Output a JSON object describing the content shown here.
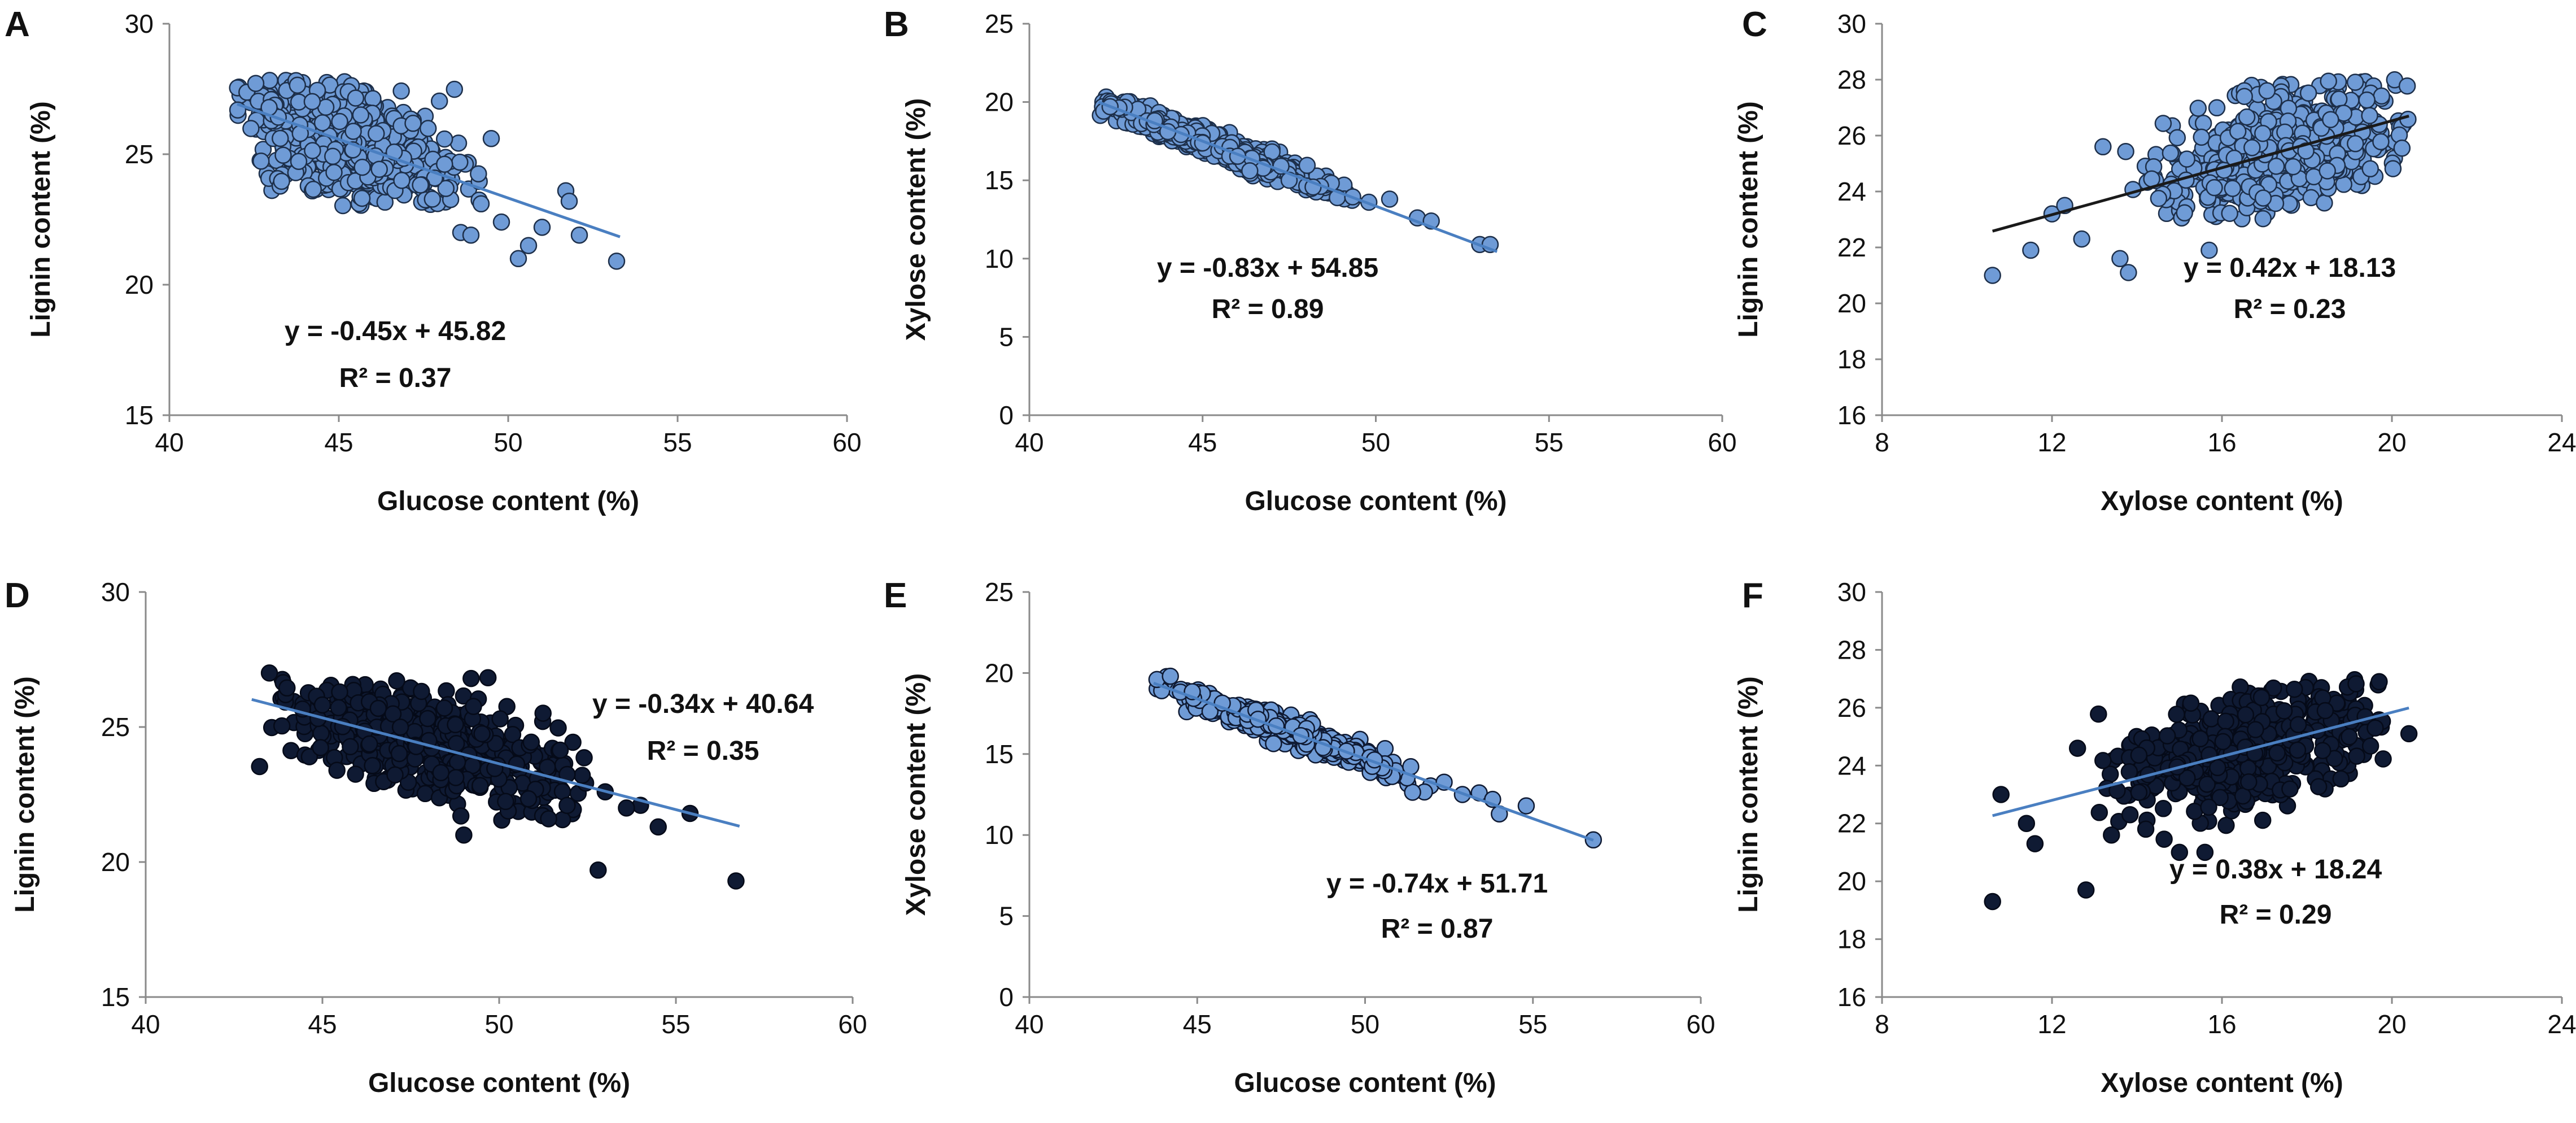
{
  "figure_title": "",
  "chart_data": [
    {
      "panel": "A",
      "type": "scatter",
      "xlabel": "Glucose content (%)",
      "ylabel": "Lignin content (%)",
      "xlim": [
        40,
        60
      ],
      "ylim": [
        15,
        30
      ],
      "xticks": [
        "40",
        "45",
        "50",
        "55",
        "60"
      ],
      "yticks": [
        "15",
        "20",
        "25",
        "30"
      ],
      "trend": {
        "slope": -0.45,
        "intercept": 45.82,
        "x_range": [
          42,
          53.3
        ],
        "color": "#4a7fc1"
      },
      "equation": "y = -0.45x + 45.82",
      "r2": "R² = 0.37",
      "point_fill": "#6f9bd6",
      "point_stroke": "#1d2f4a",
      "cloud": {
        "n": 700,
        "x_mean": 45.2,
        "x_sd": 1.55,
        "x_min": 42.0,
        "x_max": 49.5,
        "resid_sd": 1.0,
        "y_min": 23.0,
        "y_max": 28.0,
        "seed": 11
      },
      "points": [
        [
          49.5,
          25.6
        ],
        [
          51.7,
          23.6
        ],
        [
          51.8,
          23.2
        ],
        [
          53.2,
          20.9
        ],
        [
          50.3,
          21.0
        ],
        [
          49.8,
          22.4
        ],
        [
          48.6,
          22.0
        ],
        [
          48.9,
          21.9
        ],
        [
          51.0,
          22.2
        ],
        [
          52.1,
          21.9
        ],
        [
          49.2,
          23.1
        ],
        [
          50.6,
          21.5
        ]
      ]
    },
    {
      "panel": "B",
      "type": "scatter",
      "xlabel": "Glucose content (%)",
      "ylabel": "Xylose content (%)",
      "xlim": [
        40,
        60
      ],
      "ylim": [
        0,
        25
      ],
      "xticks": [
        "40",
        "45",
        "50",
        "55",
        "60"
      ],
      "yticks": [
        "0",
        "5",
        "10",
        "15",
        "20",
        "25"
      ],
      "trend": {
        "slope": -0.83,
        "intercept": 54.85,
        "x_range": [
          42,
          53.5
        ],
        "color": "#4a7fc1"
      },
      "equation": "y = -0.83x + 54.85",
      "r2": "R² = 0.89",
      "point_fill": "#6f9bd6",
      "point_stroke": "#1d2f4a",
      "cloud": {
        "n": 700,
        "x_mean": 45.2,
        "x_sd": 1.6,
        "x_min": 42.0,
        "x_max": 49.5,
        "resid_sd": 0.35,
        "y_min": 13.0,
        "y_max": 20.4,
        "seed": 23
      },
      "points": [
        [
          50.4,
          13.8
        ],
        [
          51.2,
          12.6
        ],
        [
          51.6,
          12.4
        ],
        [
          53.0,
          10.9
        ],
        [
          53.3,
          10.9
        ],
        [
          49.8,
          13.6
        ]
      ]
    },
    {
      "panel": "C",
      "type": "scatter",
      "xlabel": "Xylose content (%)",
      "ylabel": "Lignin content (%)",
      "xlim": [
        8,
        24
      ],
      "ylim": [
        16,
        30
      ],
      "xticks": [
        "8",
        "12",
        "16",
        "20",
        "24"
      ],
      "yticks": [
        "16",
        "18",
        "20",
        "22",
        "24",
        "26",
        "28",
        "30"
      ],
      "trend": {
        "slope": 0.42,
        "intercept": 18.13,
        "x_range": [
          10.6,
          20.4
        ],
        "color": "#1a1a1a"
      },
      "equation": "y = 0.42x + 18.13",
      "r2": "R² = 0.23",
      "point_fill": "#6f9bd6",
      "point_stroke": "#1d2f4a",
      "cloud": {
        "n": 700,
        "x_mean": 17.4,
        "x_sd": 1.3,
        "x_min": 13.6,
        "x_max": 20.4,
        "resid_sd": 1.05,
        "y_min": 23.0,
        "y_max": 28.0,
        "seed": 37
      },
      "points": [
        [
          10.6,
          21.0
        ],
        [
          11.5,
          21.9
        ],
        [
          12.0,
          23.2
        ],
        [
          12.3,
          23.5
        ],
        [
          12.7,
          22.3
        ],
        [
          13.2,
          25.6
        ],
        [
          13.6,
          21.6
        ],
        [
          13.8,
          21.1
        ],
        [
          15.7,
          21.9
        ]
      ]
    },
    {
      "panel": "D",
      "type": "scatter",
      "xlabel": "Glucose content (%)",
      "ylabel": "Lignin content (%)",
      "xlim": [
        40,
        60
      ],
      "ylim": [
        15,
        30
      ],
      "xticks": [
        "40",
        "45",
        "50",
        "55",
        "60"
      ],
      "yticks": [
        "15",
        "20",
        "25",
        "30"
      ],
      "trend": {
        "slope": -0.34,
        "intercept": 40.64,
        "x_range": [
          43,
          56.8
        ],
        "color": "#4a7fc1"
      },
      "equation": "y = -0.34x + 40.64",
      "r2": "R² = 0.35",
      "point_fill": "#0f1a33",
      "point_stroke": "#050a18",
      "cloud": {
        "n": 500,
        "x_mean": 48.2,
        "x_sd": 2.0,
        "x_min": 43.0,
        "x_max": 52.5,
        "resid_sd": 0.95,
        "y_min": 21.5,
        "y_max": 27.0,
        "seed": 53
      },
      "points": [
        [
          43.5,
          27.0
        ],
        [
          53.0,
          22.6
        ],
        [
          54.0,
          22.1
        ],
        [
          54.5,
          21.3
        ],
        [
          55.4,
          21.8
        ],
        [
          52.8,
          19.7
        ],
        [
          56.7,
          19.3
        ],
        [
          49.0,
          21.0
        ],
        [
          51.4,
          21.6
        ],
        [
          53.6,
          22.0
        ]
      ]
    },
    {
      "panel": "E",
      "type": "scatter",
      "xlabel": "Glucose content (%)",
      "ylabel": "Xylose content (%)",
      "xlim": [
        40,
        60
      ],
      "ylim": [
        0,
        25
      ],
      "xticks": [
        "40",
        "45",
        "50",
        "55",
        "60"
      ],
      "yticks": [
        "0",
        "5",
        "10",
        "15",
        "20",
        "25"
      ],
      "trend": {
        "slope": -0.74,
        "intercept": 51.71,
        "x_range": [
          43.7,
          56.8
        ],
        "color": "#4a7fc1"
      },
      "equation": "y = -0.74x + 51.71",
      "r2": "R² = 0.87",
      "point_fill": "#6f9bd6",
      "point_stroke": "#0f1a33",
      "cloud": {
        "n": 500,
        "x_mean": 47.8,
        "x_sd": 1.8,
        "x_min": 43.8,
        "x_max": 52.5,
        "resid_sd": 0.35,
        "y_min": 12.5,
        "y_max": 20.0,
        "seed": 71
      },
      "points": [
        [
          43.8,
          19.6
        ],
        [
          44.2,
          19.8
        ],
        [
          53.4,
          12.6
        ],
        [
          53.8,
          12.2
        ],
        [
          54.0,
          11.3
        ],
        [
          54.8,
          11.8
        ],
        [
          56.8,
          9.7
        ],
        [
          52.9,
          12.5
        ]
      ]
    },
    {
      "panel": "F",
      "type": "scatter",
      "xlabel": "Xylose content (%)",
      "ylabel": "Lignin content (%)",
      "xlim": [
        8,
        24
      ],
      "ylim": [
        16,
        30
      ],
      "xticks": [
        "8",
        "12",
        "16",
        "20",
        "24"
      ],
      "yticks": [
        "16",
        "18",
        "20",
        "22",
        "24",
        "26",
        "28",
        "30"
      ],
      "trend": {
        "slope": 0.38,
        "intercept": 18.24,
        "x_range": [
          10.6,
          20.4
        ],
        "color": "#4a7fc1"
      },
      "equation": "y = 0.38x + 18.24",
      "r2": "R² = 0.29",
      "point_fill": "#0f1a33",
      "point_stroke": "#050a18",
      "cloud": {
        "n": 500,
        "x_mean": 16.6,
        "x_sd": 1.5,
        "x_min": 13.0,
        "x_max": 19.8,
        "resid_sd": 0.95,
        "y_min": 21.0,
        "y_max": 27.0,
        "seed": 89
      },
      "points": [
        [
          10.6,
          19.3
        ],
        [
          10.8,
          23.0
        ],
        [
          11.4,
          22.0
        ],
        [
          11.6,
          21.3
        ],
        [
          12.6,
          24.6
        ],
        [
          12.8,
          19.7
        ],
        [
          13.4,
          21.6
        ],
        [
          15.0,
          21.0
        ],
        [
          15.6,
          21.0
        ],
        [
          19.7,
          26.9
        ],
        [
          20.4,
          25.1
        ]
      ]
    }
  ]
}
